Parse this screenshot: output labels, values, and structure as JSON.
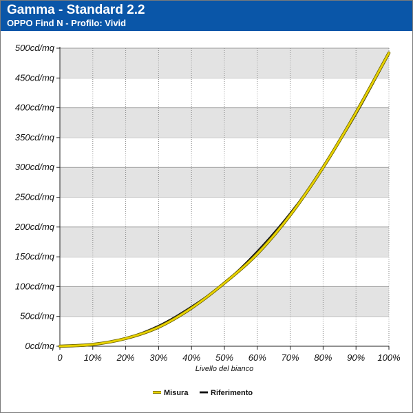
{
  "header": {
    "title": "Gamma - Standard 2.2",
    "subtitle": "OPPO Find N - Profilo: Vivid"
  },
  "chart_data": {
    "type": "line",
    "xlabel": "Livello del bianco",
    "ylabel": "",
    "x_tick_labels": [
      "0",
      "10%",
      "20%",
      "30%",
      "40%",
      "50%",
      "60%",
      "70%",
      "80%",
      "90%",
      "100%"
    ],
    "y_tick_labels": [
      "0cd/mq",
      "50cd/mq",
      "100cd/mq",
      "150cd/mq",
      "200cd/mq",
      "250cd/mq",
      "300cd/mq",
      "350cd/mq",
      "400cd/mq",
      "450cd/mq",
      "500cd/mq"
    ],
    "xlim": [
      0,
      100
    ],
    "ylim": [
      0,
      500
    ],
    "grid": "horizontal alternating bands",
    "legend_position": "bottom-center",
    "x": [
      0,
      10,
      20,
      30,
      40,
      50,
      60,
      70,
      80,
      90,
      100
    ],
    "series": [
      {
        "name": "Misura",
        "color": "#e8d200",
        "values": [
          0,
          3,
          13,
          32,
          64,
          106,
          155,
          220,
          300,
          392,
          492
        ]
      },
      {
        "name": "Riferimento",
        "color": "#111111",
        "values": [
          0,
          3,
          14,
          35,
          67,
          107,
          160,
          224,
          300,
          388,
          489
        ]
      }
    ]
  }
}
